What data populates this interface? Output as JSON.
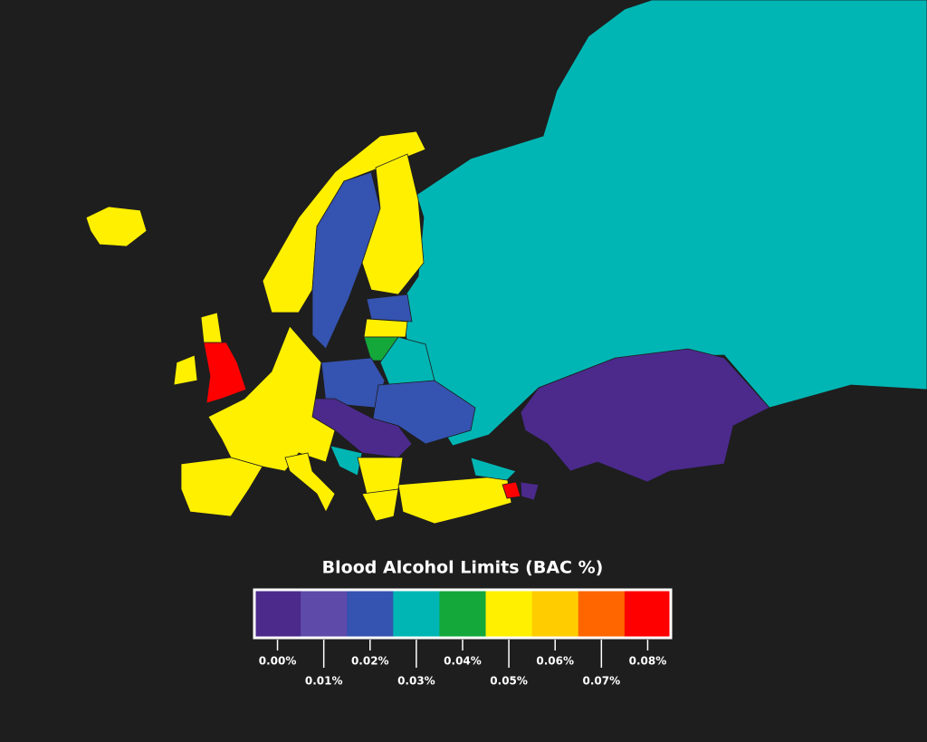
{
  "legend": {
    "title": "Blood Alcohol Limits (BAC %)",
    "bins": [
      {
        "color": "#4b2a8c",
        "label": "0.00%"
      },
      {
        "color": "#5e4aa9",
        "label": "0.01%"
      },
      {
        "color": "#3553b0",
        "label": "0.02%"
      },
      {
        "color": "#00b6b4",
        "label": "0.03%"
      },
      {
        "color": "#14a83b",
        "label": "0.04%"
      },
      {
        "color": "#fff000",
        "label": "0.05%"
      },
      {
        "color": "#ffcc00",
        "label": "0.06%"
      },
      {
        "color": "#ff6600",
        "label": "0.07%"
      },
      {
        "color": "#ff0000",
        "label": "0.08%"
      }
    ]
  }
}
